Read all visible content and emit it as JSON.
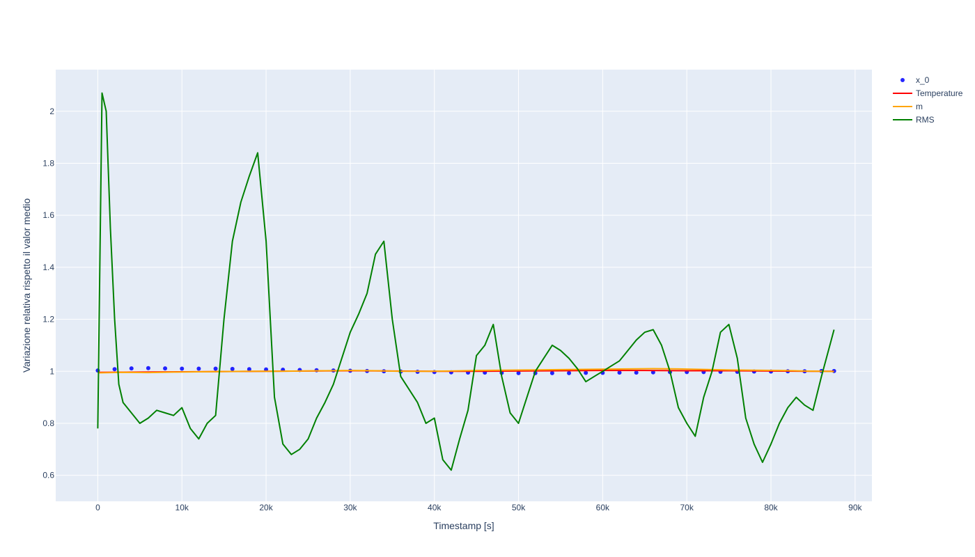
{
  "chart_data": {
    "type": "line",
    "xlabel": "Timestamp [s]",
    "ylabel": "Variazione relativa rispetto il valor medio",
    "xlim": [
      -5000,
      92000
    ],
    "ylim": [
      0.5,
      2.16
    ],
    "x_ticks": [
      0,
      10000,
      20000,
      30000,
      40000,
      50000,
      60000,
      70000,
      80000,
      90000
    ],
    "x_tick_labels": [
      "0",
      "10k",
      "20k",
      "30k",
      "40k",
      "50k",
      "60k",
      "70k",
      "80k",
      "90k"
    ],
    "y_ticks": [
      0.6,
      0.8,
      1,
      1.2,
      1.4,
      1.6,
      1.8,
      2
    ],
    "y_tick_labels": [
      "0.6",
      "0.8",
      "1",
      "1.2",
      "1.4",
      "1.6",
      "1.8",
      "2"
    ],
    "grid": true,
    "legend_position": "top-right",
    "series": [
      {
        "name": "x_0",
        "mode": "markers",
        "color": "#0000ff",
        "x": [
          0,
          2000,
          4000,
          6000,
          8000,
          10000,
          12000,
          14000,
          16000,
          18000,
          20000,
          22000,
          24000,
          26000,
          28000,
          30000,
          32000,
          34000,
          36000,
          38000,
          40000,
          42000,
          44000,
          46000,
          48000,
          50000,
          52000,
          54000,
          56000,
          58000,
          60000,
          62000,
          64000,
          66000,
          68000,
          70000,
          72000,
          74000,
          76000,
          78000,
          80000,
          82000,
          84000,
          86000,
          87500
        ],
        "y": [
          1.003,
          1.008,
          1.011,
          1.012,
          1.011,
          1.01,
          1.01,
          1.01,
          1.009,
          1.008,
          1.007,
          1.006,
          1.005,
          1.004,
          1.003,
          1.002,
          1.001,
          1.0,
          0.999,
          0.998,
          0.997,
          0.996,
          0.995,
          0.995,
          0.994,
          0.993,
          0.993,
          0.993,
          0.993,
          0.994,
          0.994,
          0.995,
          0.995,
          0.996,
          0.997,
          0.997,
          0.997,
          0.998,
          0.998,
          0.999,
          0.999,
          1.0,
          1.0,
          1.001,
          1.001
        ]
      },
      {
        "name": "Temperature",
        "mode": "lines",
        "color": "#ff0000",
        "x": [
          0,
          5000,
          10000,
          15000,
          20000,
          25000,
          30000,
          35000,
          40000,
          45000,
          50000,
          55000,
          60000,
          65000,
          70000,
          75000,
          80000,
          85000,
          87500
        ],
        "y": [
          0.996,
          0.997,
          0.998,
          0.999,
          1.0,
          1.001,
          1.002,
          1.001,
          1.0,
          1.0,
          1.001,
          1.002,
          1.003,
          1.003,
          1.002,
          1.002,
          1.001,
          1.0,
          1.0
        ]
      },
      {
        "name": "m",
        "mode": "lines",
        "color": "#ffa500",
        "x": [
          0,
          3000,
          6000,
          9000,
          12000,
          15000,
          18000,
          21000,
          24000,
          27000,
          30000,
          33000,
          36000,
          39000,
          42000,
          45000,
          48000,
          51000,
          54000,
          57000,
          60000,
          63000,
          66000,
          69000,
          72000,
          75000,
          78000,
          81000,
          84000,
          87500
        ],
        "y": [
          0.994,
          0.996,
          0.995,
          0.997,
          0.998,
          0.999,
          1.0,
          1.0,
          1.001,
          1.002,
          1.003,
          1.002,
          1.0,
          1.0,
          1.001,
          1.003,
          1.004,
          1.005,
          1.006,
          1.007,
          1.008,
          1.009,
          1.01,
          1.009,
          1.007,
          1.005,
          1.004,
          1.003,
          1.001,
          0.999
        ]
      },
      {
        "name": "RMS",
        "mode": "lines",
        "color": "#008000",
        "x": [
          0,
          500,
          1000,
          1500,
          2000,
          2500,
          3000,
          4000,
          5000,
          6000,
          7000,
          8000,
          9000,
          10000,
          11000,
          12000,
          13000,
          14000,
          15000,
          16000,
          17000,
          18000,
          19000,
          20000,
          21000,
          22000,
          23000,
          24000,
          25000,
          26000,
          27000,
          28000,
          29000,
          30000,
          31000,
          32000,
          33000,
          34000,
          35000,
          36000,
          37000,
          38000,
          39000,
          40000,
          41000,
          42000,
          43000,
          44000,
          45000,
          46000,
          47000,
          48000,
          49000,
          50000,
          51000,
          52000,
          53000,
          54000,
          55000,
          56000,
          57000,
          58000,
          59000,
          60000,
          61000,
          62000,
          63000,
          64000,
          65000,
          66000,
          67000,
          68000,
          69000,
          70000,
          71000,
          72000,
          73000,
          74000,
          75000,
          76000,
          77000,
          78000,
          79000,
          80000,
          81000,
          82000,
          83000,
          84000,
          85000,
          86000,
          87000,
          87500
        ],
        "y": [
          0.78,
          2.07,
          2.0,
          1.55,
          1.2,
          0.95,
          0.88,
          0.84,
          0.8,
          0.82,
          0.85,
          0.84,
          0.83,
          0.86,
          0.78,
          0.74,
          0.8,
          0.83,
          1.2,
          1.5,
          1.65,
          1.75,
          1.84,
          1.5,
          0.9,
          0.72,
          0.68,
          0.7,
          0.74,
          0.82,
          0.88,
          0.95,
          1.05,
          1.15,
          1.22,
          1.3,
          1.45,
          1.5,
          1.2,
          0.98,
          0.93,
          0.88,
          0.8,
          0.82,
          0.66,
          0.62,
          0.74,
          0.85,
          1.06,
          1.1,
          1.18,
          0.98,
          0.84,
          0.8,
          0.9,
          1.0,
          1.05,
          1.1,
          1.08,
          1.05,
          1.01,
          0.96,
          0.98,
          1.0,
          1.02,
          1.04,
          1.08,
          1.12,
          1.15,
          1.16,
          1.1,
          1.0,
          0.86,
          0.8,
          0.75,
          0.9,
          1.0,
          1.15,
          1.18,
          1.05,
          0.82,
          0.72,
          0.65,
          0.72,
          0.8,
          0.86,
          0.9,
          0.87,
          0.85,
          0.98,
          1.1,
          1.16
        ]
      }
    ]
  }
}
